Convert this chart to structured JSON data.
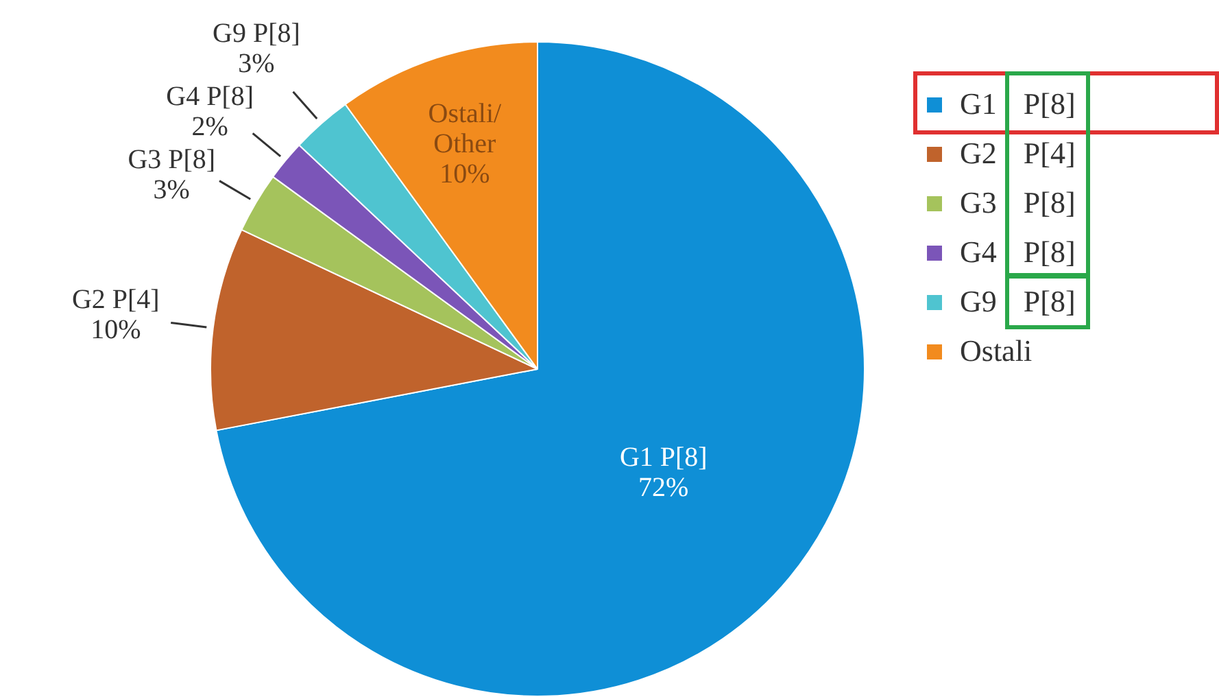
{
  "chart_data": {
    "type": "pie",
    "categories": [
      "G1 P[8]",
      "G2 P[4]",
      "G3 P[8]",
      "G4 P[8]",
      "G9 P[8]",
      "Ostali"
    ],
    "values": [
      72,
      10,
      3,
      2,
      3,
      10
    ],
    "colors": [
      "#0f8fd6",
      "#c0632c",
      "#a5c35c",
      "#7b55b8",
      "#4fc4d0",
      "#f28b1e"
    ],
    "value_labels": [
      "G1 P[8]\n72%",
      "G2 P[4]\n10%",
      "G3 P[8]\n3%",
      "G4 P[8]\n2%",
      "G9 P[8]\n3%",
      "Ostali/\nOther\n10%"
    ],
    "legend": "right"
  }
}
